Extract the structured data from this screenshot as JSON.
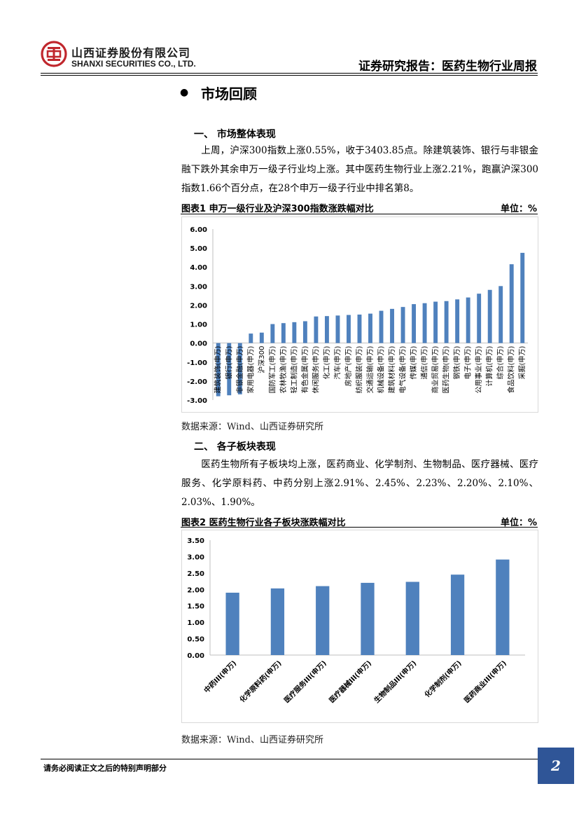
{
  "header": {
    "company_cn": "山西证券股份有限公司",
    "company_en": "SHANXI SECURITIES CO., LTD.",
    "report_title": "证券研究报告：医药生物行业周报"
  },
  "section": {
    "bullet": "●",
    "title": "市场回顾"
  },
  "sub1": {
    "heading": "一、 市场整体表现",
    "para": "上周，沪深300指数上涨0.55%，收于3403.85点。除建筑装饰、银行与非银金融下跌外其余申万一级子行业均上涨。其中医药生物行业上涨2.21%，跑赢沪深300指数1.66个百分点，在28个申万一级子行业中排名第8。"
  },
  "fig1": {
    "caption": "图表1  申万一级行业及沪深300指数涨跌幅对比",
    "unit": "单位：%",
    "source": "数据来源：Wind、山西证券研究所"
  },
  "sub2": {
    "heading": "二、 各子板块表现",
    "para": "医药生物所有子板块均上涨，医药商业、化学制剂、生物制品、医疗器械、医疗服务、化学原料药、中药分别上涨2.91%、2.45%、2.23%、2.20%、2.10%、2.03%、1.90%。"
  },
  "fig2": {
    "caption": "图表2  医药生物行业各子板块涨跌幅对比",
    "unit": "单位：%",
    "source": "数据来源：Wind、山西证券研究所"
  },
  "footer": {
    "note": "请务必阅读正文之后的特别声明部分",
    "page": "2"
  },
  "colors": {
    "bar": "#4f81bd",
    "logo_red": "#c0272d",
    "page_box": "#2f5597"
  },
  "chart_data": [
    {
      "type": "bar",
      "categories": [
        "建筑装饰(申万)",
        "银行(申万)",
        "非银金融(申万)",
        "家用电器(申万)",
        "沪深300",
        "国防军工(申万)",
        "农林牧渔(申万)",
        "轻工制造(申万)",
        "有色金属(申万)",
        "休闲服务(申万)",
        "化工(申万)",
        "汽车(申万)",
        "房地产(申万)",
        "纺织服装(申万)",
        "交通运输(申万)",
        "机械设备(申万)",
        "建筑材料(申万)",
        "电气设备(申万)",
        "传媒(申万)",
        "通信(申万)",
        "商业贸易(申万)",
        "医药生物(申万)",
        "钢铁(申万)",
        "电子(申万)",
        "公用事业(申万)",
        "计算机(申万)",
        "综合(申万)",
        "食品饮料(申万)",
        "采掘(申万)"
      ],
      "values": [
        -2.8,
        -2.75,
        -2.7,
        0.5,
        0.55,
        1.0,
        1.05,
        1.1,
        1.15,
        1.4,
        1.42,
        1.45,
        1.48,
        1.5,
        1.55,
        1.7,
        1.8,
        1.9,
        2.05,
        2.1,
        2.18,
        2.21,
        2.3,
        2.4,
        2.6,
        2.8,
        3.0,
        4.15,
        4.75
      ],
      "ylim": [
        -3.0,
        6.0
      ],
      "yticks": [
        "6.00",
        "5.00",
        "4.00",
        "3.00",
        "2.00",
        "1.00",
        "0.00",
        "-1.00",
        "-2.00",
        "-3.00"
      ],
      "grid": false,
      "legend": "none"
    },
    {
      "type": "bar",
      "categories": [
        "中药III(申万)",
        "化学原料药(申万)",
        "医疗服务III(申万)",
        "医疗器械III(申万)",
        "生物制品III(申万)",
        "化学制剂(申万)",
        "医药商业III(申万)"
      ],
      "values": [
        1.9,
        2.03,
        2.1,
        2.2,
        2.23,
        2.45,
        2.91
      ],
      "ylim": [
        0,
        3.5
      ],
      "yticks": [
        "3.50",
        "3.00",
        "2.50",
        "2.00",
        "1.50",
        "1.00",
        "0.50",
        "0.00"
      ],
      "grid": false,
      "legend": "none"
    }
  ]
}
